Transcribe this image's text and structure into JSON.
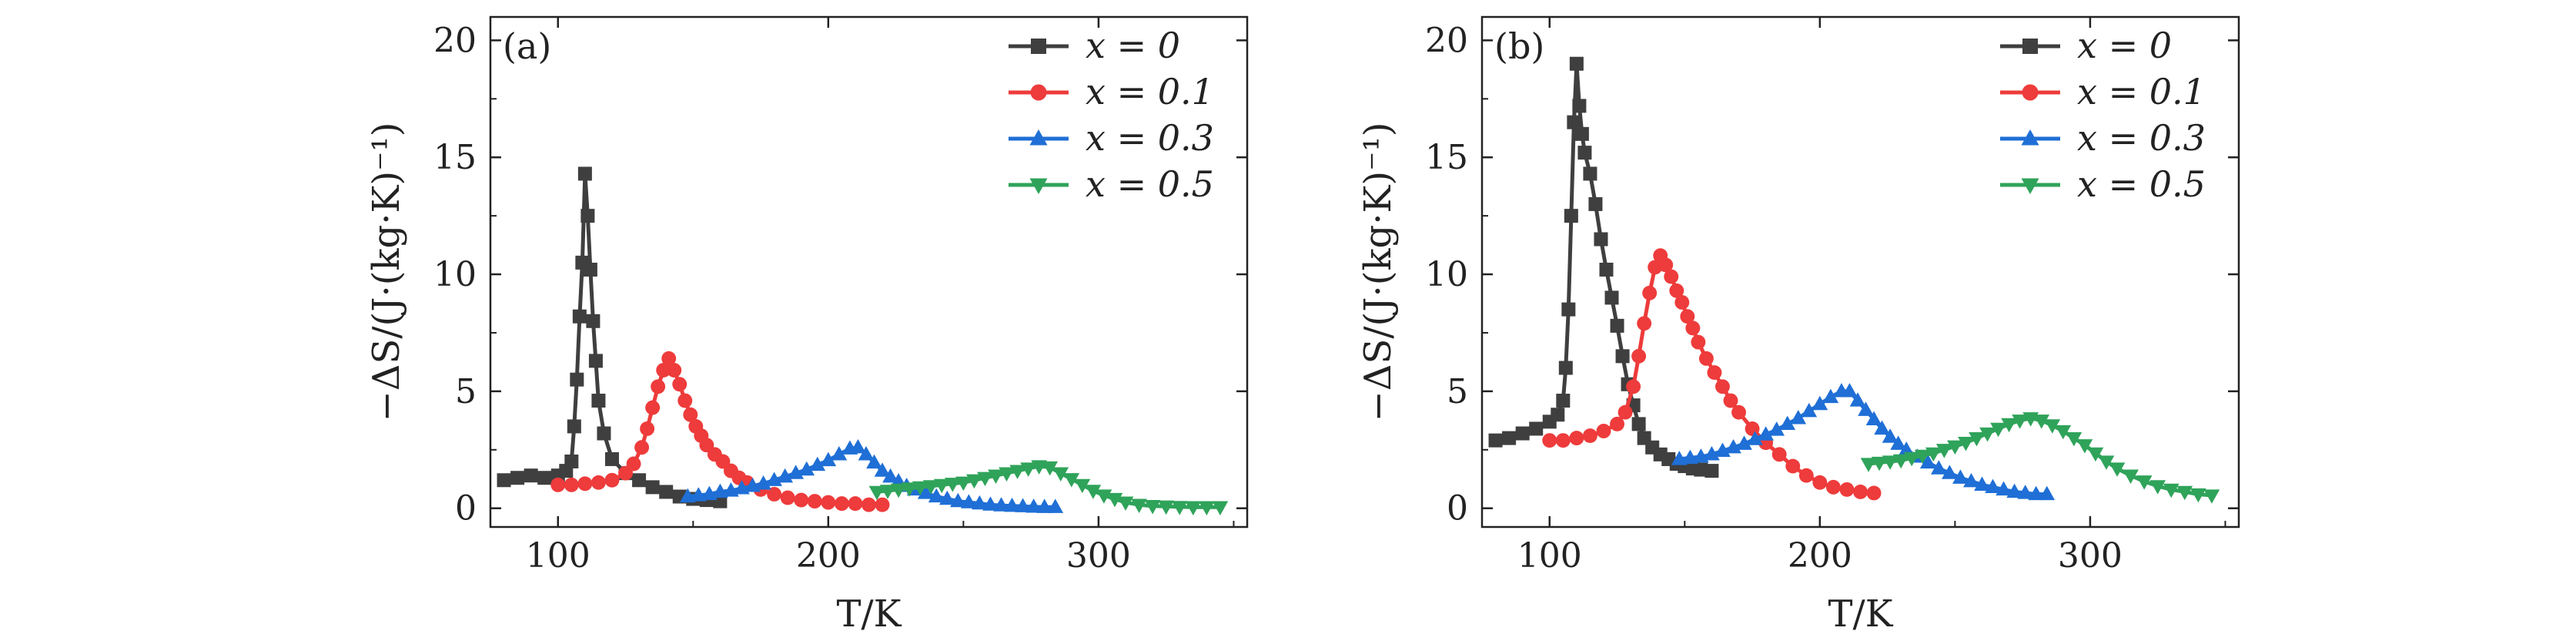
{
  "figure": {
    "panel_labels": [
      "(a)",
      "(b)"
    ]
  },
  "colors": {
    "x=0": "#3f3f3f",
    "x=0.1": "#ee3b3b",
    "x=0.3": "#1f6fd6",
    "x=0.5": "#2fa35a",
    "frame": "#222222"
  },
  "chart_data": [
    {
      "type": "line",
      "panel": "(a)",
      "xlabel": "T/K",
      "ylabel": "−ΔS/(J·(kg·K)⁻¹)",
      "xlim": [
        75,
        355
      ],
      "ylim": [
        -0.8,
        21
      ],
      "xticks": [
        100,
        200,
        300
      ],
      "yticks": [
        0,
        5,
        10,
        15,
        20
      ],
      "legend": "top-right",
      "series": [
        {
          "name": "x = 0",
          "marker": "square",
          "color_key": "x=0",
          "x": [
            80,
            85,
            90,
            95,
            100,
            103,
            105,
            106,
            107,
            108,
            109,
            110,
            111,
            112,
            113,
            114,
            115,
            117,
            120,
            125,
            130,
            135,
            140,
            145,
            150,
            155,
            160
          ],
          "y": [
            1.2,
            1.3,
            1.4,
            1.3,
            1.4,
            1.6,
            2.0,
            3.5,
            5.5,
            8.2,
            10.5,
            14.3,
            12.5,
            10.2,
            8.0,
            6.3,
            4.6,
            3.2,
            2.1,
            1.5,
            1.2,
            0.9,
            0.7,
            0.5,
            0.4,
            0.35,
            0.3
          ]
        },
        {
          "name": "x = 0.1",
          "marker": "circle",
          "color_key": "x=0.1",
          "x": [
            100,
            105,
            110,
            115,
            120,
            125,
            128,
            131,
            133,
            135,
            137,
            139,
            141,
            143,
            145,
            147,
            149,
            151,
            153,
            155,
            158,
            161,
            164,
            167,
            170,
            175,
            180,
            185,
            190,
            195,
            200,
            205,
            210,
            215,
            220
          ],
          "y": [
            1.0,
            1.0,
            1.05,
            1.1,
            1.2,
            1.5,
            1.9,
            2.6,
            3.4,
            4.3,
            5.2,
            5.9,
            6.4,
            5.9,
            5.3,
            4.6,
            4.0,
            3.5,
            3.1,
            2.7,
            2.3,
            2.0,
            1.6,
            1.3,
            1.1,
            0.8,
            0.6,
            0.45,
            0.35,
            0.3,
            0.25,
            0.2,
            0.2,
            0.15,
            0.15
          ],
          "labels": [
            "0.1"
          ]
        },
        {
          "name": "x = 0.3",
          "marker": "triangle-up",
          "color_key": "x=0.3",
          "x": [
            148,
            152,
            156,
            160,
            164,
            168,
            172,
            176,
            180,
            184,
            188,
            192,
            196,
            200,
            204,
            208,
            211,
            214,
            217,
            220,
            223,
            226,
            229,
            232,
            236,
            240,
            244,
            248,
            252,
            256,
            260,
            264,
            268,
            272,
            276,
            280,
            284
          ],
          "y": [
            0.5,
            0.55,
            0.6,
            0.7,
            0.75,
            0.85,
            0.95,
            1.05,
            1.2,
            1.35,
            1.5,
            1.65,
            1.85,
            2.05,
            2.3,
            2.55,
            2.6,
            2.3,
            1.95,
            1.6,
            1.35,
            1.15,
            0.95,
            0.8,
            0.65,
            0.5,
            0.4,
            0.3,
            0.25,
            0.2,
            0.15,
            0.12,
            0.1,
            0.08,
            0.06,
            0.05,
            0.05
          ]
        },
        {
          "name": "x = 0.5",
          "marker": "triangle-down",
          "color_key": "x=0.5",
          "x": [
            218,
            222,
            226,
            230,
            234,
            238,
            242,
            246,
            250,
            254,
            258,
            262,
            266,
            270,
            274,
            278,
            282,
            286,
            290,
            294,
            298,
            302,
            306,
            310,
            315,
            320,
            325,
            330,
            335,
            340,
            345
          ],
          "y": [
            0.7,
            0.75,
            0.8,
            0.85,
            0.9,
            0.95,
            1.0,
            1.05,
            1.1,
            1.2,
            1.3,
            1.4,
            1.5,
            1.6,
            1.7,
            1.8,
            1.75,
            1.5,
            1.25,
            1.0,
            0.75,
            0.55,
            0.4,
            0.25,
            0.15,
            0.1,
            0.08,
            0.06,
            0.05,
            0.05,
            0.05
          ]
        }
      ]
    },
    {
      "type": "line",
      "panel": "(b)",
      "xlabel": "T/K",
      "ylabel": "−ΔS/(J·(kg·K)⁻¹)",
      "xlim": [
        75,
        355
      ],
      "ylim": [
        -0.8,
        21
      ],
      "xticks": [
        100,
        200,
        300
      ],
      "yticks": [
        0,
        5,
        10,
        15,
        20
      ],
      "legend": "top-right",
      "series": [
        {
          "name": "x = 0",
          "marker": "square",
          "color_key": "x=0",
          "x": [
            80,
            85,
            90,
            95,
            100,
            103,
            105,
            106,
            107,
            108,
            109,
            110,
            111,
            112,
            113,
            115,
            117,
            119,
            121,
            123,
            125,
            127,
            129,
            131,
            133,
            135,
            138,
            141,
            144,
            147,
            150,
            153,
            156,
            160
          ],
          "y": [
            2.9,
            3.0,
            3.2,
            3.4,
            3.7,
            4.0,
            4.6,
            6.0,
            8.5,
            12.5,
            16.5,
            19.0,
            17.2,
            16.0,
            15.2,
            14.3,
            13.0,
            11.5,
            10.2,
            9.0,
            7.8,
            6.5,
            5.3,
            4.4,
            3.6,
            3.0,
            2.6,
            2.3,
            2.1,
            1.9,
            1.8,
            1.7,
            1.65,
            1.6
          ]
        },
        {
          "name": "x = 0.1",
          "marker": "circle",
          "color_key": "x=0.1",
          "x": [
            100,
            105,
            110,
            115,
            120,
            125,
            128,
            131,
            133,
            135,
            137,
            139,
            141,
            143,
            145,
            147,
            149,
            151,
            153,
            155,
            158,
            161,
            164,
            167,
            170,
            175,
            180,
            185,
            190,
            195,
            200,
            205,
            210,
            215,
            220
          ],
          "y": [
            2.9,
            2.9,
            3.0,
            3.1,
            3.3,
            3.6,
            4.1,
            5.2,
            6.5,
            7.9,
            9.2,
            10.3,
            10.8,
            10.4,
            9.9,
            9.3,
            8.8,
            8.2,
            7.7,
            7.1,
            6.4,
            5.8,
            5.2,
            4.6,
            4.1,
            3.4,
            2.8,
            2.3,
            1.8,
            1.4,
            1.1,
            0.9,
            0.8,
            0.7,
            0.65
          ]
        },
        {
          "name": "x = 0.3",
          "marker": "triangle-up",
          "color_key": "x=0.3",
          "x": [
            148,
            152,
            156,
            160,
            164,
            168,
            172,
            176,
            180,
            184,
            188,
            192,
            196,
            200,
            204,
            208,
            211,
            214,
            217,
            220,
            223,
            226,
            229,
            232,
            236,
            240,
            244,
            248,
            252,
            256,
            260,
            264,
            268,
            272,
            276,
            280,
            284
          ],
          "y": [
            2.1,
            2.15,
            2.2,
            2.3,
            2.45,
            2.6,
            2.75,
            2.95,
            3.15,
            3.35,
            3.6,
            3.85,
            4.15,
            4.45,
            4.75,
            5.0,
            5.0,
            4.6,
            4.2,
            3.8,
            3.4,
            3.05,
            2.75,
            2.5,
            2.2,
            1.95,
            1.7,
            1.5,
            1.3,
            1.15,
            1.0,
            0.9,
            0.8,
            0.7,
            0.65,
            0.6,
            0.6
          ]
        },
        {
          "name": "x = 0.5",
          "marker": "triangle-down",
          "color_key": "x=0.5",
          "x": [
            218,
            222,
            226,
            230,
            234,
            238,
            242,
            246,
            250,
            254,
            258,
            262,
            266,
            270,
            274,
            278,
            282,
            286,
            290,
            294,
            298,
            302,
            306,
            310,
            315,
            320,
            325,
            330,
            335,
            340,
            345
          ],
          "y": [
            1.9,
            1.95,
            2.0,
            2.05,
            2.15,
            2.25,
            2.35,
            2.5,
            2.65,
            2.8,
            3.0,
            3.2,
            3.4,
            3.6,
            3.75,
            3.85,
            3.75,
            3.55,
            3.3,
            3.0,
            2.7,
            2.35,
            2.0,
            1.7,
            1.4,
            1.15,
            0.95,
            0.8,
            0.7,
            0.6,
            0.55
          ]
        }
      ]
    }
  ],
  "legend_entries": [
    {
      "var": "x",
      "eq": "=",
      "val": "0"
    },
    {
      "var": "x",
      "eq": "=",
      "val": "0.1"
    },
    {
      "var": "x",
      "eq": "=",
      "val": "0.3"
    },
    {
      "var": "x",
      "eq": "=",
      "val": "0.5"
    }
  ]
}
